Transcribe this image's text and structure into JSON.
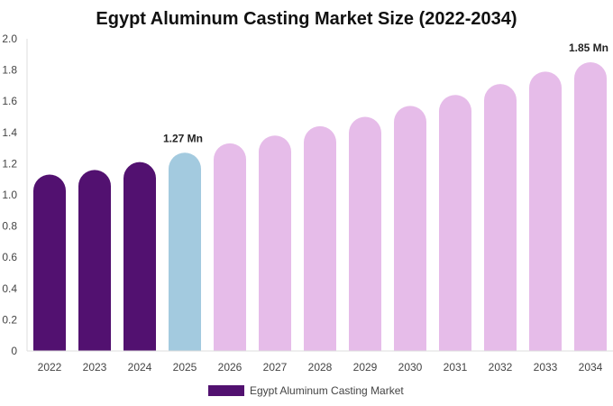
{
  "chart_data": {
    "type": "bar",
    "title": "Egypt Aluminum Casting Market Size (2022-2034)",
    "categories": [
      "2022",
      "2023",
      "2024",
      "2025",
      "2026",
      "2027",
      "2028",
      "2029",
      "2030",
      "2031",
      "2032",
      "2033",
      "2034"
    ],
    "series": [
      {
        "name": "Egypt Aluminum Casting Market",
        "values": [
          1.13,
          1.16,
          1.21,
          1.27,
          1.33,
          1.38,
          1.44,
          1.5,
          1.57,
          1.64,
          1.71,
          1.79,
          1.85
        ]
      }
    ],
    "bar_colors": [
      "#521170",
      "#521170",
      "#521170",
      "#a3cadf",
      "#e6bce9",
      "#e6bce9",
      "#e6bce9",
      "#e6bce9",
      "#e6bce9",
      "#e6bce9",
      "#e6bce9",
      "#e6bce9",
      "#e6bce9"
    ],
    "data_labels": [
      {
        "category": "2025",
        "text": "1.27 Mn"
      },
      {
        "category": "2034",
        "text": "1.85 Mn"
      }
    ],
    "y_ticks": [
      "0",
      "0.2",
      "0.4",
      "0.6",
      "0.8",
      "1.0",
      "1.2",
      "1.4",
      "1.6",
      "1.8",
      "2.0"
    ],
    "xlabel": "",
    "ylabel": "",
    "ylim": [
      0,
      2.0
    ],
    "grid": false,
    "legend_position": "bottom-center",
    "legend_color": "#521170"
  }
}
